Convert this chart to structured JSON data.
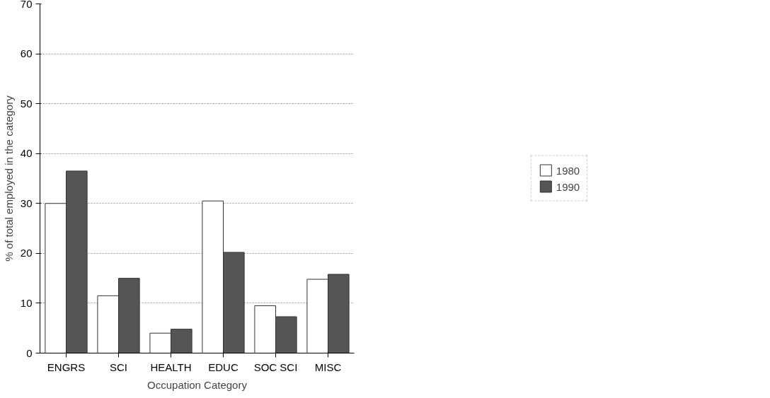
{
  "chart_data": {
    "type": "bar",
    "xlabel": "Occupation Category",
    "ylabel": "% of total employed in the category",
    "categories": [
      "ENGRS",
      "SCI",
      "HEALTH",
      "EDUC",
      "SOC SCI",
      "MISC"
    ],
    "series": [
      {
        "name": "1980",
        "color": "#ffffff",
        "values": [
          30,
          11.5,
          4,
          30.5,
          9.5,
          14.8
        ]
      },
      {
        "name": "1990",
        "color": "#555555",
        "values": [
          36.5,
          15,
          4.8,
          20.2,
          7.3,
          15.8
        ]
      }
    ],
    "ylim": [
      0,
      70
    ],
    "yticks": [
      0,
      10,
      20,
      30,
      40,
      50,
      60,
      70
    ],
    "grid": "y",
    "legend": "right"
  }
}
